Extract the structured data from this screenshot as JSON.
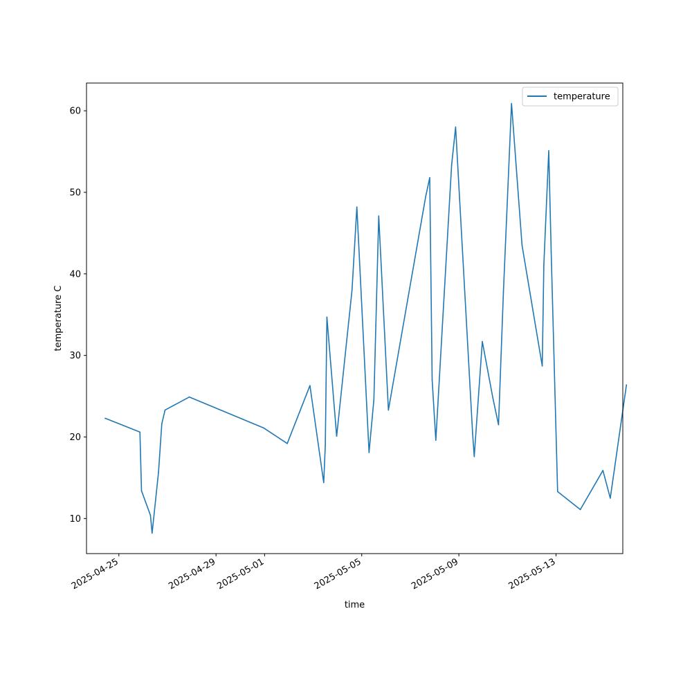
{
  "chart_data": {
    "type": "line",
    "title": "",
    "xlabel": "time",
    "ylabel": "temperature C",
    "xlim": [
      "2025-04-23T16:00",
      "2025-05-15T18:00"
    ],
    "ylim": [
      5.7,
      63.4
    ],
    "grid": false,
    "legend_position": "top-right",
    "x_ticks": [
      "2025-04-25",
      "2025-04-29",
      "2025-05-01",
      "2025-05-05",
      "2025-05-09",
      "2025-05-13"
    ],
    "y_ticks": [
      10,
      20,
      30,
      40,
      50,
      60
    ],
    "series": [
      {
        "name": "temperature",
        "color": "#1f77b4",
        "x": [
          "2025-04-24T10:24",
          "2025-04-25T20:48",
          "2025-04-25T22:24",
          "2025-04-26T07:12",
          "2025-04-26T08:48",
          "2025-04-26T15:12",
          "2025-04-26T18:24",
          "2025-04-26T21:36",
          "2025-04-27T21:36",
          "2025-04-30T23:12",
          "2025-05-01T22:24",
          "2025-05-02T20:48",
          "2025-05-03T10:24",
          "2025-05-03T12:00",
          "2025-05-03T13:36",
          "2025-05-03T23:12",
          "2025-05-04T14:24",
          "2025-05-04T19:12",
          "2025-05-05T07:12",
          "2025-05-05T12:00",
          "2025-05-05T16:48",
          "2025-05-06T02:24",
          "2025-05-07T15:12",
          "2025-05-07T19:12",
          "2025-05-07T21:36",
          "2025-05-08T01:12",
          "2025-05-08T16:48",
          "2025-05-08T20:48",
          "2025-05-09T13:36",
          "2025-05-09T15:12",
          "2025-05-09T23:12",
          "2025-05-10T09:36",
          "2025-05-10T15:12",
          "2025-05-10T20:00",
          "2025-05-11T04:00",
          "2025-05-11T14:24",
          "2025-05-12T10:24",
          "2025-05-12T12:00",
          "2025-05-12T16:48",
          "2025-05-12T19:12",
          "2025-05-13T01:36",
          "2025-05-14T00:00",
          "2025-05-14T22:24",
          "2025-05-15T05:36",
          "2025-05-15T21:36"
        ],
        "values": [
          22.3,
          20.6,
          13.4,
          10.4,
          8.2,
          15.7,
          21.6,
          23.3,
          24.9,
          21.1,
          19.2,
          26.3,
          14.4,
          19.0,
          34.7,
          20.1,
          38.0,
          48.2,
          18.1,
          24.6,
          47.1,
          23.3,
          49.5,
          51.8,
          27.0,
          19.6,
          53.3,
          58.0,
          20.4,
          17.6,
          31.7,
          24.8,
          21.5,
          37.8,
          60.9,
          43.5,
          28.7,
          41.1,
          55.1,
          42.7,
          13.3,
          11.1,
          15.9,
          12.5,
          26.4
        ]
      }
    ]
  }
}
